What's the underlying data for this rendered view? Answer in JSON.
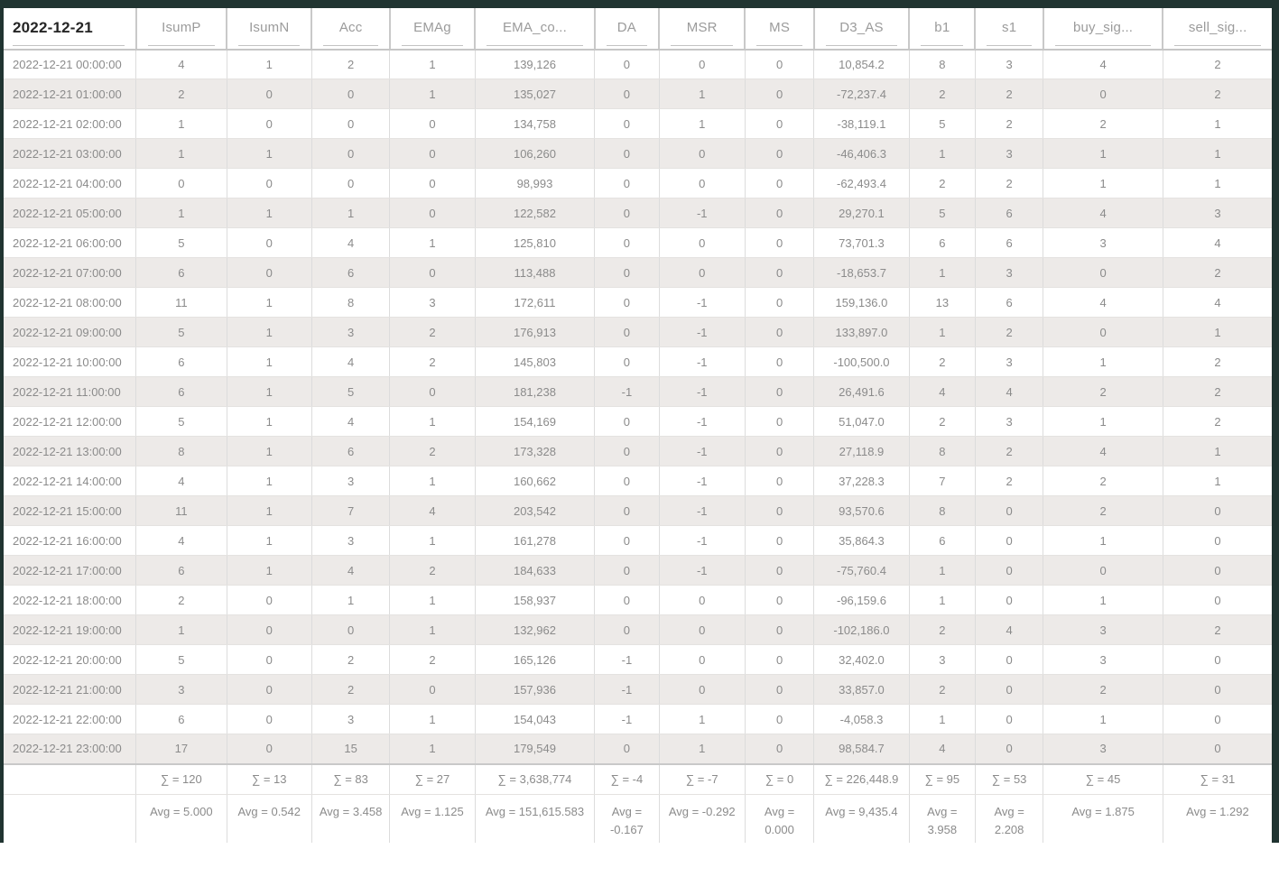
{
  "table": {
    "columns": [
      {
        "key": "date",
        "label": "2022-12-21"
      },
      {
        "key": "isump",
        "label": "IsumP"
      },
      {
        "key": "isumn",
        "label": "IsumN"
      },
      {
        "key": "acc",
        "label": "Acc"
      },
      {
        "key": "emag",
        "label": "EMAg"
      },
      {
        "key": "ema_co",
        "label": "EMA_co..."
      },
      {
        "key": "da",
        "label": "DA"
      },
      {
        "key": "msr",
        "label": "MSR"
      },
      {
        "key": "ms",
        "label": "MS"
      },
      {
        "key": "d3_as",
        "label": "D3_AS"
      },
      {
        "key": "b1",
        "label": "b1"
      },
      {
        "key": "s1",
        "label": "s1"
      },
      {
        "key": "buy_sig",
        "label": "buy_sig..."
      },
      {
        "key": "sell_sig",
        "label": "sell_sig..."
      }
    ],
    "rows": [
      [
        "2022-12-21 00:00:00",
        "4",
        "1",
        "2",
        "1",
        "139,126",
        "0",
        "0",
        "0",
        "10,854.2",
        "8",
        "3",
        "4",
        "2"
      ],
      [
        "2022-12-21 01:00:00",
        "2",
        "0",
        "0",
        "1",
        "135,027",
        "0",
        "1",
        "0",
        "-72,237.4",
        "2",
        "2",
        "0",
        "2"
      ],
      [
        "2022-12-21 02:00:00",
        "1",
        "0",
        "0",
        "0",
        "134,758",
        "0",
        "1",
        "0",
        "-38,119.1",
        "5",
        "2",
        "2",
        "1"
      ],
      [
        "2022-12-21 03:00:00",
        "1",
        "1",
        "0",
        "0",
        "106,260",
        "0",
        "0",
        "0",
        "-46,406.3",
        "1",
        "3",
        "1",
        "1"
      ],
      [
        "2022-12-21 04:00:00",
        "0",
        "0",
        "0",
        "0",
        "98,993",
        "0",
        "0",
        "0",
        "-62,493.4",
        "2",
        "2",
        "1",
        "1"
      ],
      [
        "2022-12-21 05:00:00",
        "1",
        "1",
        "1",
        "0",
        "122,582",
        "0",
        "-1",
        "0",
        "29,270.1",
        "5",
        "6",
        "4",
        "3"
      ],
      [
        "2022-12-21 06:00:00",
        "5",
        "0",
        "4",
        "1",
        "125,810",
        "0",
        "0",
        "0",
        "73,701.3",
        "6",
        "6",
        "3",
        "4"
      ],
      [
        "2022-12-21 07:00:00",
        "6",
        "0",
        "6",
        "0",
        "113,488",
        "0",
        "0",
        "0",
        "-18,653.7",
        "1",
        "3",
        "0",
        "2"
      ],
      [
        "2022-12-21 08:00:00",
        "11",
        "1",
        "8",
        "3",
        "172,611",
        "0",
        "-1",
        "0",
        "159,136.0",
        "13",
        "6",
        "4",
        "4"
      ],
      [
        "2022-12-21 09:00:00",
        "5",
        "1",
        "3",
        "2",
        "176,913",
        "0",
        "-1",
        "0",
        "133,897.0",
        "1",
        "2",
        "0",
        "1"
      ],
      [
        "2022-12-21 10:00:00",
        "6",
        "1",
        "4",
        "2",
        "145,803",
        "0",
        "-1",
        "0",
        "-100,500.0",
        "2",
        "3",
        "1",
        "2"
      ],
      [
        "2022-12-21 11:00:00",
        "6",
        "1",
        "5",
        "0",
        "181,238",
        "-1",
        "-1",
        "0",
        "26,491.6",
        "4",
        "4",
        "2",
        "2"
      ],
      [
        "2022-12-21 12:00:00",
        "5",
        "1",
        "4",
        "1",
        "154,169",
        "0",
        "-1",
        "0",
        "51,047.0",
        "2",
        "3",
        "1",
        "2"
      ],
      [
        "2022-12-21 13:00:00",
        "8",
        "1",
        "6",
        "2",
        "173,328",
        "0",
        "-1",
        "0",
        "27,118.9",
        "8",
        "2",
        "4",
        "1"
      ],
      [
        "2022-12-21 14:00:00",
        "4",
        "1",
        "3",
        "1",
        "160,662",
        "0",
        "-1",
        "0",
        "37,228.3",
        "7",
        "2",
        "2",
        "1"
      ],
      [
        "2022-12-21 15:00:00",
        "11",
        "1",
        "7",
        "4",
        "203,542",
        "0",
        "-1",
        "0",
        "93,570.6",
        "8",
        "0",
        "2",
        "0"
      ],
      [
        "2022-12-21 16:00:00",
        "4",
        "1",
        "3",
        "1",
        "161,278",
        "0",
        "-1",
        "0",
        "35,864.3",
        "6",
        "0",
        "1",
        "0"
      ],
      [
        "2022-12-21 17:00:00",
        "6",
        "1",
        "4",
        "2",
        "184,633",
        "0",
        "-1",
        "0",
        "-75,760.4",
        "1",
        "0",
        "0",
        "0"
      ],
      [
        "2022-12-21 18:00:00",
        "2",
        "0",
        "1",
        "1",
        "158,937",
        "0",
        "0",
        "0",
        "-96,159.6",
        "1",
        "0",
        "1",
        "0"
      ],
      [
        "2022-12-21 19:00:00",
        "1",
        "0",
        "0",
        "1",
        "132,962",
        "0",
        "0",
        "0",
        "-102,186.0",
        "2",
        "4",
        "3",
        "2"
      ],
      [
        "2022-12-21 20:00:00",
        "5",
        "0",
        "2",
        "2",
        "165,126",
        "-1",
        "0",
        "0",
        "32,402.0",
        "3",
        "0",
        "3",
        "0"
      ],
      [
        "2022-12-21 21:00:00",
        "3",
        "0",
        "2",
        "0",
        "157,936",
        "-1",
        "0",
        "0",
        "33,857.0",
        "2",
        "0",
        "2",
        "0"
      ],
      [
        "2022-12-21 22:00:00",
        "6",
        "0",
        "3",
        "1",
        "154,043",
        "-1",
        "1",
        "0",
        "-4,058.3",
        "1",
        "0",
        "1",
        "0"
      ],
      [
        "2022-12-21 23:00:00",
        "17",
        "0",
        "15",
        "1",
        "179,549",
        "0",
        "1",
        "0",
        "98,584.7",
        "4",
        "0",
        "3",
        "0"
      ]
    ],
    "sum_row": [
      "",
      "∑ = 120",
      "∑ = 13",
      "∑ = 83",
      "∑ = 27",
      "∑ = 3,638,774",
      "∑ = -4",
      "∑ = -7",
      "∑ = 0",
      "∑ = 226,448.9",
      "∑ = 95",
      "∑ = 53",
      "∑ = 45",
      "∑ = 31"
    ],
    "avg_row": [
      "",
      "Avg = 5.000",
      "Avg = 0.542",
      "Avg = 3.458",
      "Avg = 1.125",
      "Avg = 151,615.583",
      "Avg =\n-0.167",
      "Avg = -0.292",
      "Avg = 0.000",
      "Avg = 9,435.4",
      "Avg =\n3.958",
      "Avg =\n2.208",
      "Avg = 1.875",
      "Avg = 1.292"
    ]
  },
  "colors": {
    "frame": "#203431",
    "stripe": "#edeae8",
    "cell_text": "#8b8b8b"
  }
}
